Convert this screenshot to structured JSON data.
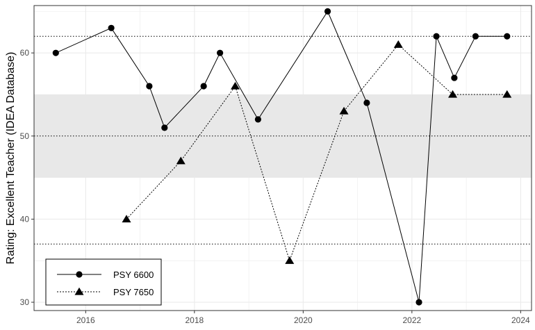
{
  "chart_data": {
    "type": "line",
    "title": "",
    "xlabel": "",
    "ylabel": "Rating: Excellent Teacher (IDEA Database)",
    "xlim": [
      2015.05,
      2024.2
    ],
    "ylim": [
      29,
      65.7
    ],
    "x_ticks": [
      2016,
      2018,
      2020,
      2022,
      2024
    ],
    "y_ticks": [
      30,
      40,
      50,
      60
    ],
    "grid": true,
    "legend_position": "bottom-left",
    "band": {
      "ymin": 45,
      "ymax": 55,
      "color": "#e8e8e8"
    },
    "reference_lines": [
      {
        "y": 62,
        "style": "dotted"
      },
      {
        "y": 50,
        "style": "dotted"
      },
      {
        "y": 37,
        "style": "dotted"
      }
    ],
    "series": [
      {
        "name": "PSY 6600",
        "marker": "circle",
        "line": "solid",
        "x": [
          2015.45,
          2016.47,
          2017.17,
          2017.45,
          2018.17,
          2018.47,
          2019.17,
          2020.45,
          2021.17,
          2022.13,
          2022.45,
          2022.78,
          2023.17,
          2023.75
        ],
        "y": [
          60,
          63,
          56,
          51,
          56,
          60,
          52,
          65,
          54,
          30,
          62,
          57,
          62,
          62
        ]
      },
      {
        "name": "PSY 7650",
        "marker": "triangle",
        "line": "dotted",
        "x": [
          2016.75,
          2017.75,
          2018.75,
          2019.75,
          2020.75,
          2021.75,
          2022.75,
          2023.75
        ],
        "y": [
          40,
          47,
          56,
          35,
          53,
          61,
          55,
          55
        ]
      }
    ]
  },
  "colors": {
    "series": "#000000",
    "grid": "#ebebeb",
    "panel_border": "#333333",
    "band": "#e8e8e8",
    "tick_text": "#4d4d4d"
  }
}
